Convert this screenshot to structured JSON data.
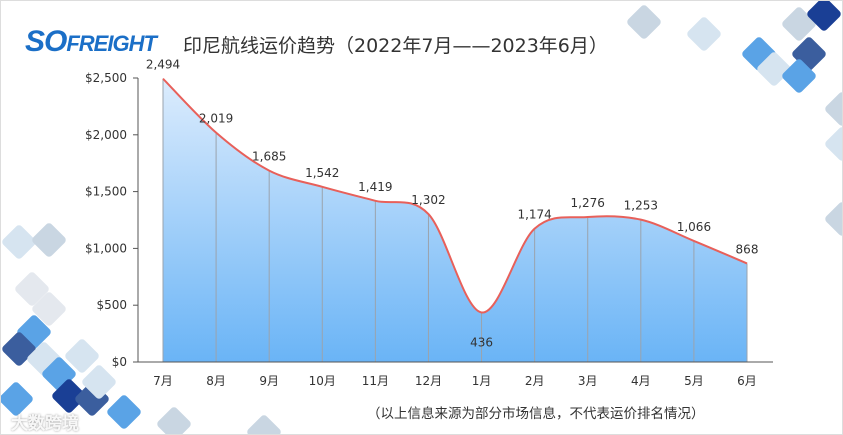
{
  "logo_text": "SOFREIGHT",
  "title": "印尼航线运价趋势（2022年7月——2023年6月）",
  "note": "（以上信息来源为部分市场信息，不代表运价排名情况）",
  "watermark": "大数跨境",
  "colors": {
    "line": "#e8605a",
    "fill_top": "#dcecfd",
    "fill_bottom": "#6ab4f6",
    "accent": "#1b6fc7"
  },
  "chart_data": {
    "type": "area",
    "title": "印尼航线运价趋势（2022年7月——2023年6月）",
    "categories": [
      "7月",
      "8月",
      "9月",
      "10月",
      "11月",
      "12月",
      "1月",
      "2月",
      "3月",
      "4月",
      "5月",
      "6月"
    ],
    "values": [
      2494,
      2019,
      1685,
      1542,
      1419,
      1302,
      436,
      1174,
      1276,
      1253,
      1066,
      868
    ],
    "value_labels": [
      "2,494",
      "2,019",
      "1,685",
      "1,542",
      "1,419",
      "1,302",
      "436",
      "1,174",
      "1,276",
      "1,253",
      "1,066",
      "868"
    ],
    "yticks": [
      0,
      500,
      1000,
      1500,
      2000,
      2500
    ],
    "ytick_labels": [
      "$0",
      "$500",
      "$1,000",
      "$1,500",
      "$2,000",
      "$2,500"
    ],
    "ylim": [
      0,
      2500
    ],
    "grid": false,
    "smooth": true
  }
}
